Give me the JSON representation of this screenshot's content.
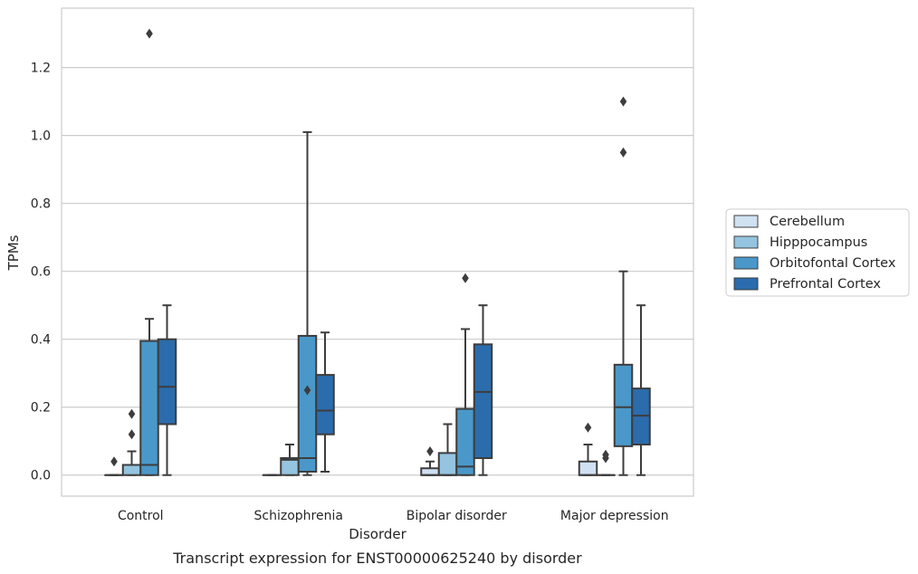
{
  "chart_data": {
    "type": "boxplot",
    "title": "",
    "caption": "Transcript expression for ENST00000625240 by disorder",
    "xlabel": "Disorder",
    "ylabel": "TPMs",
    "ylim": [
      -0.062,
      1.375
    ],
    "yticks": [
      "0.0",
      "0.2",
      "0.4",
      "0.6",
      "0.8",
      "1.0",
      "1.2"
    ],
    "grid": "horizontal",
    "legend_position": "right",
    "categories": [
      "Control",
      "Schizophrenia",
      "Bipolar disorder",
      "Major depression"
    ],
    "series": [
      {
        "name": "Cerebellum",
        "color": "#d0e1f2",
        "boxes": [
          {
            "category": "Control",
            "whisker_low": 0.0,
            "q1": 0.0,
            "median": 0.0,
            "q3": 0.0,
            "whisker_high": 0.0,
            "outliers": [
              0.04
            ]
          },
          {
            "category": "Schizophrenia",
            "whisker_low": 0.0,
            "q1": 0.0,
            "median": 0.0,
            "q3": 0.0,
            "whisker_high": 0.0,
            "outliers": []
          },
          {
            "category": "Bipolar disorder",
            "whisker_low": 0.0,
            "q1": 0.0,
            "median": 0.0,
            "q3": 0.02,
            "whisker_high": 0.04,
            "outliers": [
              0.07
            ]
          },
          {
            "category": "Major depression",
            "whisker_low": 0.0,
            "q1": 0.0,
            "median": 0.0,
            "q3": 0.04,
            "whisker_high": 0.09,
            "outliers": [
              0.14
            ]
          }
        ]
      },
      {
        "name": "Hipppocampus",
        "color": "#94c4df",
        "boxes": [
          {
            "category": "Control",
            "whisker_low": 0.0,
            "q1": 0.0,
            "median": 0.03,
            "q3": 0.03,
            "whisker_high": 0.07,
            "outliers": [
              0.12,
              0.18
            ]
          },
          {
            "category": "Schizophrenia",
            "whisker_low": 0.0,
            "q1": 0.0,
            "median": 0.045,
            "q3": 0.05,
            "whisker_high": 0.09,
            "outliers": []
          },
          {
            "category": "Bipolar disorder",
            "whisker_low": 0.0,
            "q1": 0.0,
            "median": 0.0,
            "q3": 0.065,
            "whisker_high": 0.15,
            "outliers": []
          },
          {
            "category": "Major depression",
            "whisker_low": 0.0,
            "q1": 0.0,
            "median": 0.0,
            "q3": 0.0,
            "whisker_high": 0.0,
            "outliers": [
              0.05,
              0.06
            ]
          }
        ]
      },
      {
        "name": "Orbitofontal Cortex",
        "color": "#4a98c9",
        "boxes": [
          {
            "category": "Control",
            "whisker_low": 0.0,
            "q1": 0.0,
            "median": 0.03,
            "q3": 0.395,
            "whisker_high": 0.46,
            "outliers": [
              1.3
            ]
          },
          {
            "category": "Schizophrenia",
            "whisker_low": 0.0,
            "q1": 0.01,
            "median": 0.05,
            "q3": 0.41,
            "whisker_high": 1.01,
            "outliers": [
              0.25
            ]
          },
          {
            "category": "Bipolar disorder",
            "whisker_low": 0.0,
            "q1": 0.0,
            "median": 0.025,
            "q3": 0.195,
            "whisker_high": 0.43,
            "outliers": [
              0.58
            ]
          },
          {
            "category": "Major depression",
            "whisker_low": 0.0,
            "q1": 0.085,
            "median": 0.2,
            "q3": 0.325,
            "whisker_high": 0.6,
            "outliers": [
              0.95,
              1.1
            ]
          }
        ]
      },
      {
        "name": "Prefrontal Cortex",
        "color": "#2b6cad",
        "boxes": [
          {
            "category": "Control",
            "whisker_low": 0.0,
            "q1": 0.15,
            "median": 0.26,
            "q3": 0.4,
            "whisker_high": 0.5,
            "outliers": []
          },
          {
            "category": "Schizophrenia",
            "whisker_low": 0.01,
            "q1": 0.12,
            "median": 0.19,
            "q3": 0.295,
            "whisker_high": 0.42,
            "outliers": []
          },
          {
            "category": "Bipolar disorder",
            "whisker_low": 0.0,
            "q1": 0.05,
            "median": 0.245,
            "q3": 0.385,
            "whisker_high": 0.5,
            "outliers": []
          },
          {
            "category": "Major depression",
            "whisker_low": 0.0,
            "q1": 0.09,
            "median": 0.175,
            "q3": 0.255,
            "whisker_high": 0.5,
            "outliers": []
          }
        ]
      }
    ]
  }
}
